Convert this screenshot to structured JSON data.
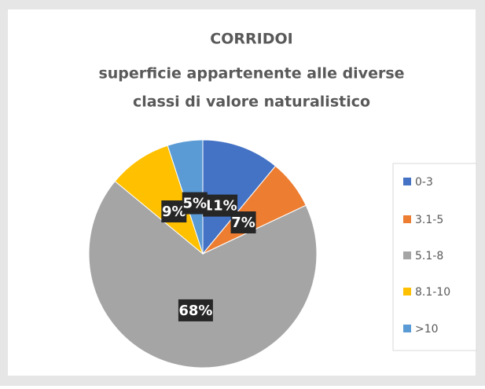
{
  "chart_data": {
    "type": "pie",
    "title": [
      "CORRIDOI",
      "superficie  appartenente alle diverse",
      "classi di valore naturalistico"
    ],
    "categories": [
      "0-3",
      "3.1-5",
      "5.1-8",
      "8.1-10",
      ">10"
    ],
    "values": [
      11,
      7,
      68,
      9,
      5
    ],
    "value_labels": [
      "11%",
      "7%",
      "68%",
      "9%",
      "5%"
    ],
    "colors": [
      "#4472c4",
      "#ed7d31",
      "#a5a5a5",
      "#ffc000",
      "#5b9bd5"
    ],
    "legend": "right"
  }
}
